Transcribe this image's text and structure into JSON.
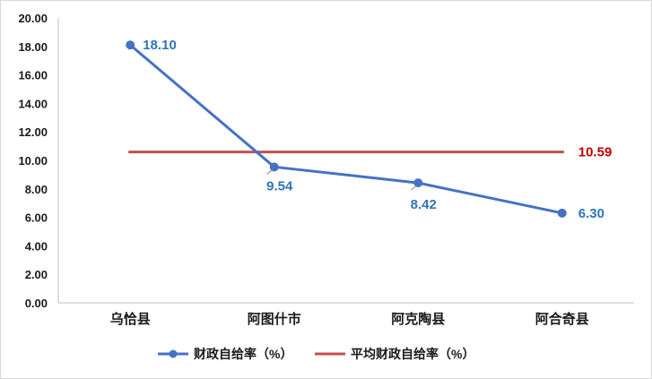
{
  "chart_data": {
    "type": "line",
    "categories": [
      "乌恰县",
      "阿图什市",
      "阿克陶县",
      "阿合奇县"
    ],
    "series": [
      {
        "name": "财政自给率（%）",
        "values": [
          18.1,
          9.54,
          8.42,
          6.3
        ],
        "labels": [
          "18.10",
          "9.54",
          "8.42",
          "6.30"
        ],
        "color": "#4472c4",
        "label_color": "#2e75b6",
        "marker": "circle"
      },
      {
        "name": "平均财政自给率（%）",
        "values": [
          10.59,
          10.59,
          10.59,
          10.59
        ],
        "label": "10.59",
        "color": "#c0504d",
        "label_color": "#c00000"
      }
    ],
    "ylim": [
      0,
      20
    ],
    "yticks": [
      "0.00",
      "2.00",
      "4.00",
      "6.00",
      "8.00",
      "10.00",
      "12.00",
      "14.00",
      "16.00",
      "18.00",
      "20.00"
    ],
    "xlabel": "",
    "ylabel": "",
    "title": "",
    "grid": false,
    "legend_position": "bottom"
  }
}
